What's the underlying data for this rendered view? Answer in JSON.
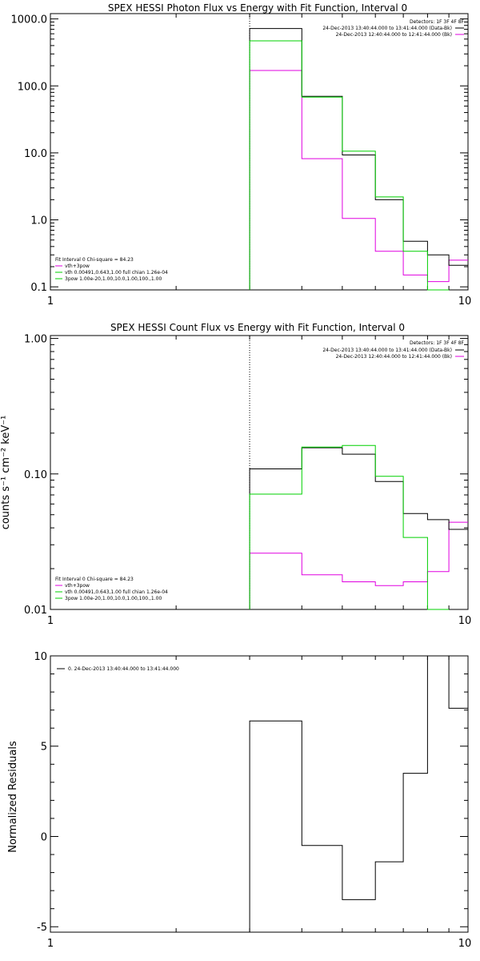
{
  "colors": {
    "black": "#000000",
    "magenta": "#e000e0",
    "green": "#00d000"
  },
  "chart_data": [
    {
      "type": "line",
      "title": "SPEX HESSI Photon Flux vs Energy with Fit Function, Interval 0",
      "xscale": "log",
      "yscale": "log",
      "xlim": [
        1,
        10
      ],
      "ylim": [
        0.09,
        1200
      ],
      "xticks": [
        "1",
        "10"
      ],
      "yticks": [
        {
          "v": 0.1,
          "label": "0.1"
        },
        {
          "v": 1,
          "label": "1.0"
        },
        {
          "v": 10,
          "label": "10.0"
        },
        {
          "v": 100,
          "label": "100.0"
        },
        {
          "v": 1000,
          "label": "1000.0"
        }
      ],
      "ylabel": "",
      "detectors": "Detectors: 1F 3F 4F 8F",
      "legend": [
        {
          "text": "24-Dec-2013 13:40:44.000 to 13:41:44.000 (Data-Bk)",
          "color": "#000000"
        },
        {
          "text": "24-Dec-2013 12:40:44.000 to 12:41:44.000 (Bk)",
          "color": "#e000e0"
        }
      ],
      "fit_info": [
        {
          "text": "Fit Interval 0   Chi-square = 84.23",
          "color": "#000000"
        },
        {
          "text": "vth+3pow",
          "color": "#e000e0"
        },
        {
          "text": "vth 0.00491,0.643,1.00  full chian 1.26e-04",
          "color": "#00d000"
        },
        {
          "text": "3pow 1.00e-20,1.00,10.0,1.00,100.,1.00",
          "color": "#00d000"
        }
      ],
      "vline_x": 3,
      "edges": [
        3,
        4,
        5,
        6,
        7,
        8,
        9,
        10
      ],
      "series": [
        {
          "name": "24-Dec-2013 13:40:44.000 to 13:41:44.000 (Data-Bk)",
          "color": "#000000",
          "values": [
            720,
            70,
            9.3,
            2.0,
            0.48,
            0.3,
            0.21
          ]
        },
        {
          "name": "24-Dec-2013 12:40:44.000 to 12:41:44.000 (Bk)",
          "color": "#e000e0",
          "values": [
            170,
            8.2,
            1.05,
            0.34,
            0.15,
            0.12,
            0.25
          ]
        },
        {
          "name": "vth+3pow",
          "color": "#00d000",
          "values": [
            470,
            68,
            10.6,
            2.2,
            0.34,
            0.085,
            null
          ]
        }
      ]
    },
    {
      "type": "line",
      "title": "SPEX HESSI Count Flux vs Energy with Fit Function, Interval 0",
      "xscale": "log",
      "yscale": "log",
      "xlim": [
        1,
        10
      ],
      "ylim": [
        0.01,
        1.05
      ],
      "xticks": [
        "1",
        "10"
      ],
      "yticks": [
        {
          "v": 0.01,
          "label": "0.01"
        },
        {
          "v": 0.1,
          "label": "0.10"
        },
        {
          "v": 1,
          "label": "1.00"
        }
      ],
      "ylabel": "counts s⁻¹ cm⁻² keV⁻¹",
      "detectors": "Detectors: 1F 3F 4F 8F",
      "legend": [
        {
          "text": "24-Dec-2013 13:40:44.000 to 13:41:44.000 (Data-Bk)",
          "color": "#000000"
        },
        {
          "text": "24-Dec-2013 12:40:44.000 to 12:41:44.000 (Bk)",
          "color": "#e000e0"
        }
      ],
      "fit_info": [
        {
          "text": "Fit Interval 0   Chi-square = 84.23",
          "color": "#000000"
        },
        {
          "text": "vth+3pow",
          "color": "#e000e0"
        },
        {
          "text": "vth 0.00491,0.643,1.00  full chian 1.26e-04",
          "color": "#00d000"
        },
        {
          "text": "3pow 1.00e-20,1.00,10.0,1.00,100.,1.00",
          "color": "#00d000"
        }
      ],
      "vline_x": 3,
      "edges": [
        3,
        4,
        5,
        6,
        7,
        8,
        9,
        10
      ],
      "series": [
        {
          "name": "24-Dec-2013 13:40:44.000 to 13:41:44.000 (Data-Bk)",
          "color": "#000000",
          "values": [
            0.109,
            0.156,
            0.14,
            0.088,
            0.051,
            0.046,
            0.039
          ]
        },
        {
          "name": "24-Dec-2013 12:40:44.000 to 12:41:44.000 (Bk)",
          "color": "#e000e0",
          "values": [
            0.026,
            0.018,
            0.016,
            0.015,
            0.016,
            0.019,
            0.044
          ]
        },
        {
          "name": "vth+3pow",
          "color": "#00d000",
          "values": [
            0.071,
            0.158,
            0.162,
            0.096,
            0.034,
            0.009,
            null
          ]
        }
      ]
    },
    {
      "type": "line",
      "title": "",
      "xscale": "log",
      "yscale": "linear",
      "xlim": [
        1,
        10
      ],
      "ylim": [
        -5.3,
        10
      ],
      "xticks": [
        "1",
        "10"
      ],
      "yticks": [
        {
          "v": -5,
          "label": "-5"
        },
        {
          "v": 0,
          "label": "0"
        },
        {
          "v": 5,
          "label": "5"
        },
        {
          "v": 10,
          "label": "10"
        }
      ],
      "ylabel": "Normalized Residuals",
      "legend": [
        {
          "text": "0. 24-Dec-2013 13:40:44.000 to 13:41:44.000",
          "color": "#000000"
        }
      ],
      "edges": [
        3,
        4,
        5,
        6,
        7,
        8,
        9,
        10
      ],
      "series": [
        {
          "name": "0. 24-Dec-2013 13:40:44.000 to 13:41:44.000",
          "color": "#000000",
          "values": [
            6.4,
            -0.5,
            -3.5,
            -1.4,
            3.5,
            10.0,
            7.1
          ]
        }
      ]
    }
  ]
}
